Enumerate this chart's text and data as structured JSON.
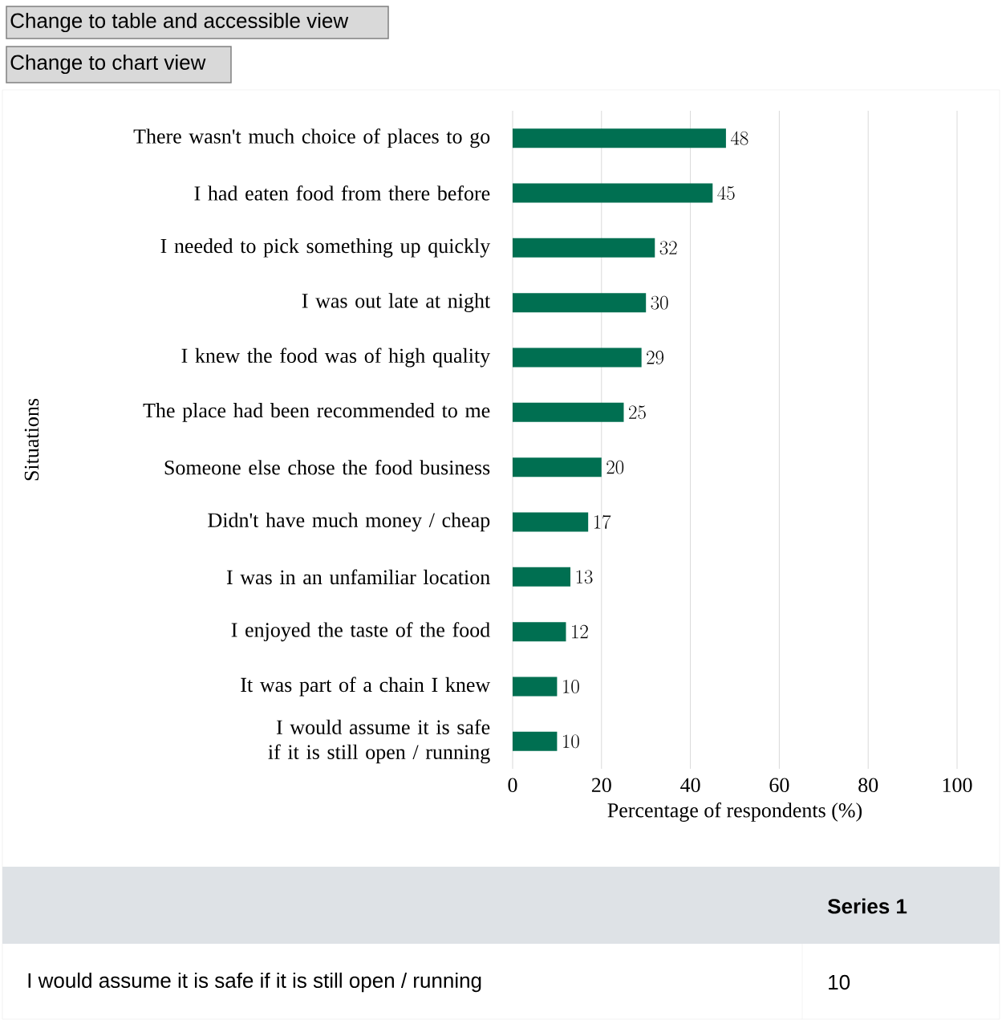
{
  "chart_data": {
    "type": "bar",
    "orientation": "horizontal",
    "categories": [
      "There wasn't much choice of places to go",
      "I had eaten food from there before",
      "I needed to pick something up quickly",
      "I was out late at night",
      "I knew the food was of high quality",
      "The place had been recommended to me",
      "Someone else chose the food business",
      "Didn't have much money / cheap",
      "I was in an unfamiliar location",
      "I enjoyed the taste of the food",
      "It was part of a chain I knew",
      "I would assume it is safe if it is still open / running"
    ],
    "values": [
      48,
      45,
      32,
      30,
      29,
      25,
      20,
      17,
      13,
      12,
      10,
      10
    ],
    "color": "#006f51",
    "xlim": [
      0,
      100
    ],
    "xticks": [
      0,
      20,
      40,
      60,
      80,
      100
    ],
    "grid": "x",
    "data_labels": true,
    "xlabel": "Percentage of respondents (%)",
    "ylabel": "Situations",
    "annotations": [
      "Change to table and accessible view",
      "Change to chart view",
      "Series 1",
      "I would assume it is safe if it is still open / running",
      "10"
    ]
  }
}
